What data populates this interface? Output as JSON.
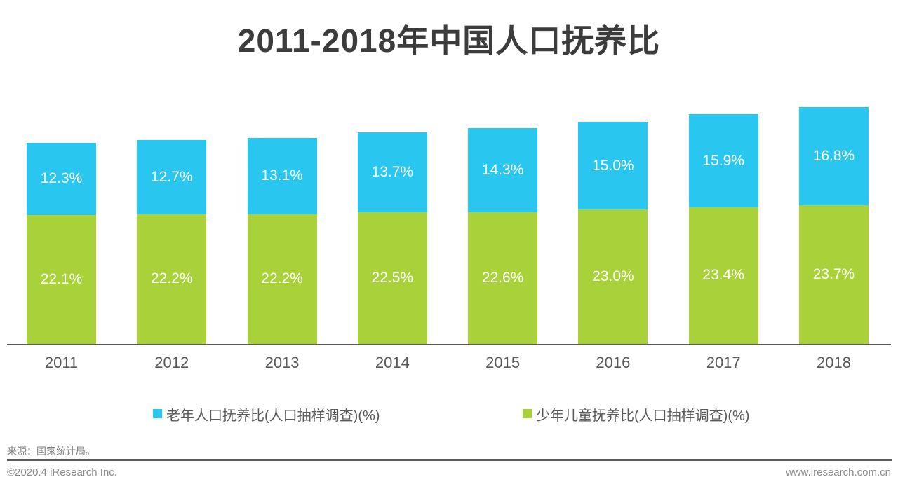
{
  "title": "2011-2018年中国人口抚养比",
  "colors": {
    "elderly_blue": "#29c7ef",
    "children_green": "#a9d139",
    "axis_gray": "#595959",
    "title_text": "#3c3c3c",
    "footer_gray": "#8c8c8c"
  },
  "chart_data": {
    "type": "bar",
    "stacked": true,
    "title": "2011-2018年中国人口抚养比",
    "categories": [
      "2011",
      "2012",
      "2013",
      "2014",
      "2015",
      "2016",
      "2017",
      "2018"
    ],
    "series": [
      {
        "name": "老年人口抚养比(人口抽样调查)(%)",
        "color": "#29c7ef",
        "position": "top",
        "values": [
          12.3,
          12.7,
          13.1,
          13.7,
          14.3,
          15.0,
          15.9,
          16.8
        ]
      },
      {
        "name": "少年儿童抚养比(人口抽样调查)(%)",
        "color": "#a9d139",
        "position": "bottom",
        "values": [
          22.1,
          22.2,
          22.2,
          22.5,
          22.6,
          23.0,
          23.4,
          23.7
        ]
      }
    ],
    "value_label_suffix": "%",
    "value_label_decimals": 1,
    "legend_position": "bottom",
    "grid": false,
    "y_axis_shown": false
  },
  "source": "来源：国家统计局。",
  "footer": {
    "copyright": "©2020.4 iResearch Inc.",
    "website": "www.iresearch.com.cn"
  }
}
